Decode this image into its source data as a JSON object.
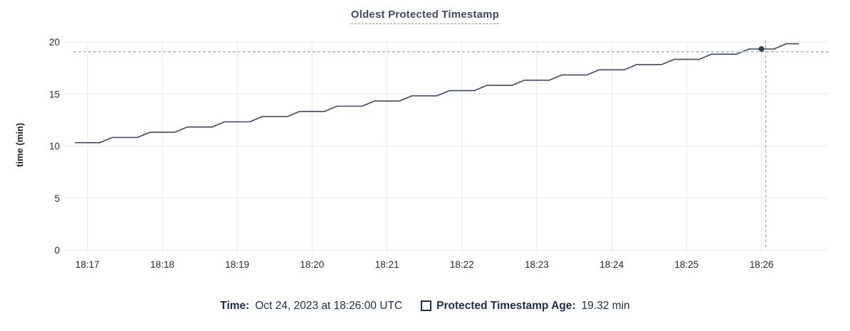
{
  "header": {
    "title": "Oldest Protected Timestamp"
  },
  "legend": {
    "time_label": "Time:",
    "time_value": "Oct 24, 2023 at 18:26:00 UTC",
    "series_swatch_icon": "square-outline",
    "series_label": "Protected Timestamp Age:",
    "series_value": "19.32 min"
  },
  "chart_data": {
    "type": "line",
    "title": "Oldest Protected Timestamp",
    "xlabel": "",
    "ylabel": "time (min)",
    "ylim": [
      0,
      20
    ],
    "yticks": [
      0,
      5,
      10,
      15,
      20
    ],
    "xticks": [
      "18:17",
      "18:18",
      "18:19",
      "18:20",
      "18:21",
      "18:22",
      "18:23",
      "18:24",
      "18:25",
      "18:26"
    ],
    "grid": true,
    "legend_position": "bottom",
    "series": [
      {
        "name": "Protected Timestamp Age",
        "unit": "min",
        "x_start": "18:16:50",
        "x_interval_seconds": 10,
        "shape": "staircase rising ~0.5 min every 30 s",
        "values": [
          10.32,
          10.32,
          10.32,
          10.82,
          10.82,
          10.82,
          11.32,
          11.32,
          11.32,
          11.82,
          11.82,
          11.82,
          12.32,
          12.32,
          12.32,
          12.82,
          12.82,
          12.82,
          13.32,
          13.32,
          13.32,
          13.82,
          13.82,
          13.82,
          14.32,
          14.32,
          14.32,
          14.82,
          14.82,
          14.82,
          15.32,
          15.32,
          15.32,
          15.82,
          15.82,
          15.82,
          16.32,
          16.32,
          16.32,
          16.82,
          16.82,
          16.82,
          17.32,
          17.32,
          17.32,
          17.82,
          17.82,
          17.82,
          18.32,
          18.32,
          18.32,
          18.82,
          18.82,
          18.82,
          19.32,
          19.32,
          19.32,
          19.82,
          19.82
        ]
      }
    ],
    "hover_point": {
      "date": "Oct 24, 2023",
      "time": "18:26:00",
      "timezone": "UTC",
      "seconds_after_1817": 540,
      "value": 19.32
    },
    "colors": {
      "line": "#3b4a63",
      "dot": "#2f3d55",
      "crosshair": "#9db1c3",
      "grid": "#ececec",
      "tick_text": "#26292e",
      "axis_title_text": "#1c1e21",
      "title_text": "#3e4961",
      "legend_text": "#1d2c47"
    }
  }
}
